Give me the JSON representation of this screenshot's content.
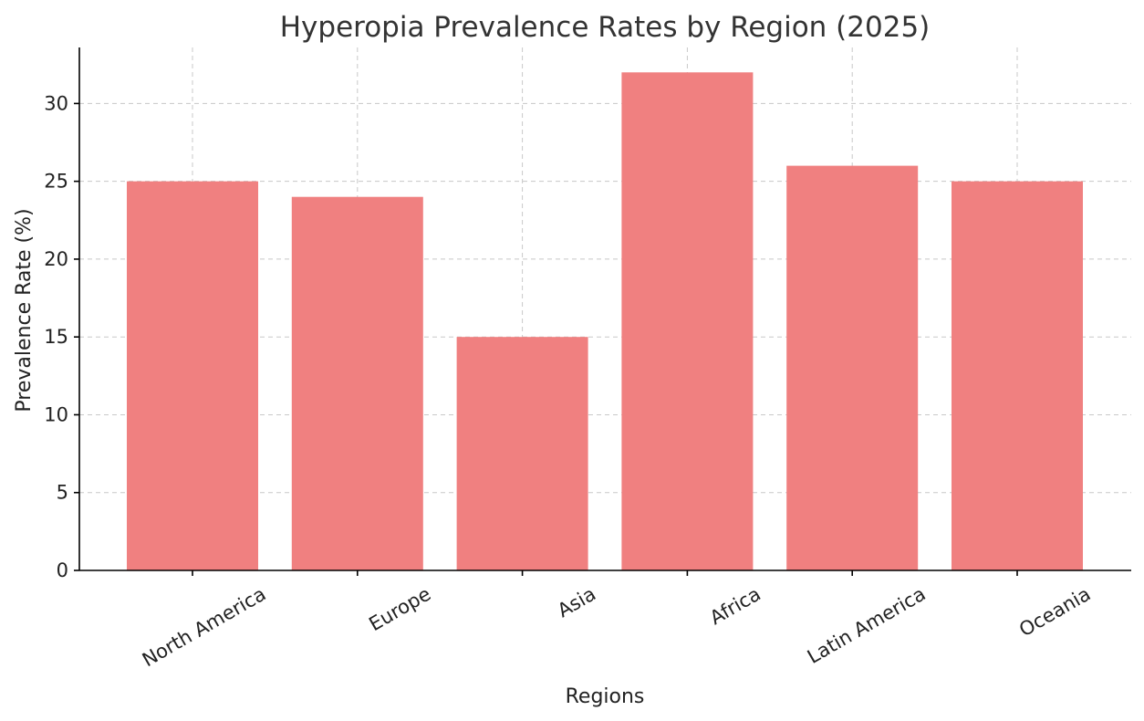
{
  "chart_data": {
    "type": "bar",
    "title": "Hyperopia Prevalence Rates by Region (2025)",
    "xlabel": "Regions",
    "ylabel": "Prevalence Rate (%)",
    "categories": [
      "North America",
      "Europe",
      "Asia",
      "Africa",
      "Latin America",
      "Oceania"
    ],
    "values": [
      25,
      24,
      15,
      32,
      26,
      25
    ],
    "ylim": [
      0,
      33.6
    ],
    "yticks": [
      0,
      5,
      10,
      15,
      20,
      25,
      30
    ],
    "grid": true,
    "bar_color": "#f08080"
  }
}
